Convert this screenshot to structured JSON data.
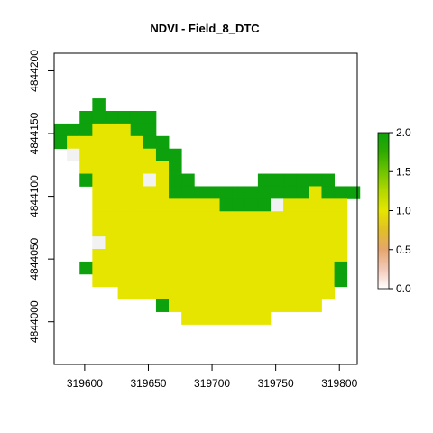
{
  "chart_data": {
    "type": "heatmap",
    "title": "NDVI - Field_8_DTC",
    "xlabel": "",
    "ylabel": "",
    "xlim": [
      319576,
      319814
    ],
    "ylim": [
      4843966,
      4844214
    ],
    "x_ticks": [
      319600,
      319650,
      319700,
      319750,
      319800
    ],
    "y_ticks": [
      4844000,
      4844050,
      4844100,
      4844150,
      4844200
    ],
    "grid": false,
    "cell_size": 10,
    "origin_x": 319576,
    "origin_y": 4844178,
    "value_colors": {
      "G": "#0da10d",
      "Y": "#e5e500",
      "W": "#f2f2f2"
    },
    "value_levels": {
      "G": 2.0,
      "Y": 1.0,
      "W": 0.0
    },
    "rows": [
      "...G.....................",
      "..GGGGGG.................",
      "GGGYYYGG.................",
      "GYYYYYYGG................",
      ".WYYYYYYGG...............",
      "..YYYYYYYG...............",
      "..GYYYYWYGG.....GGGGGG...",
      "...YYYYYYGGGGGGGGGGGYGGG.",
      "...YYYYYYYYYYGGGGWYYYYY..",
      "...YYYYYYYYYYYYYYYYYYYY..",
      "...YYYYYYYYYYYYYYYYYYYY..",
      "...WYYYYYYYYYYYYYYYYYYY..",
      "...YYYYYYYYYYYYYYYYYYYY..",
      "..GYYYYYYYYYYYYYYYYYYYG..",
      "...YYYYYYYYYYYYYYYYYYYG..",
      ".....YYYYYYYYYYYYYYYYY...",
      "........GYYYYYYYYYYYY....",
      "..........YYYYYYY........"
    ],
    "legend": {
      "min": 0.0,
      "max": 2.0,
      "ticks": [
        0.0,
        0.5,
        1.0,
        1.5,
        2.0
      ],
      "tick_labels": [
        "0.0",
        "0.5",
        "1.0",
        "1.5",
        "2.0"
      ],
      "colors": [
        "#ffffff",
        "#f2c9b7",
        "#e6a56e",
        "#e2be27",
        "#e5e500",
        "#b4d800",
        "#6fc400",
        "#2fab00",
        "#0da10d"
      ],
      "placement": "right"
    }
  }
}
